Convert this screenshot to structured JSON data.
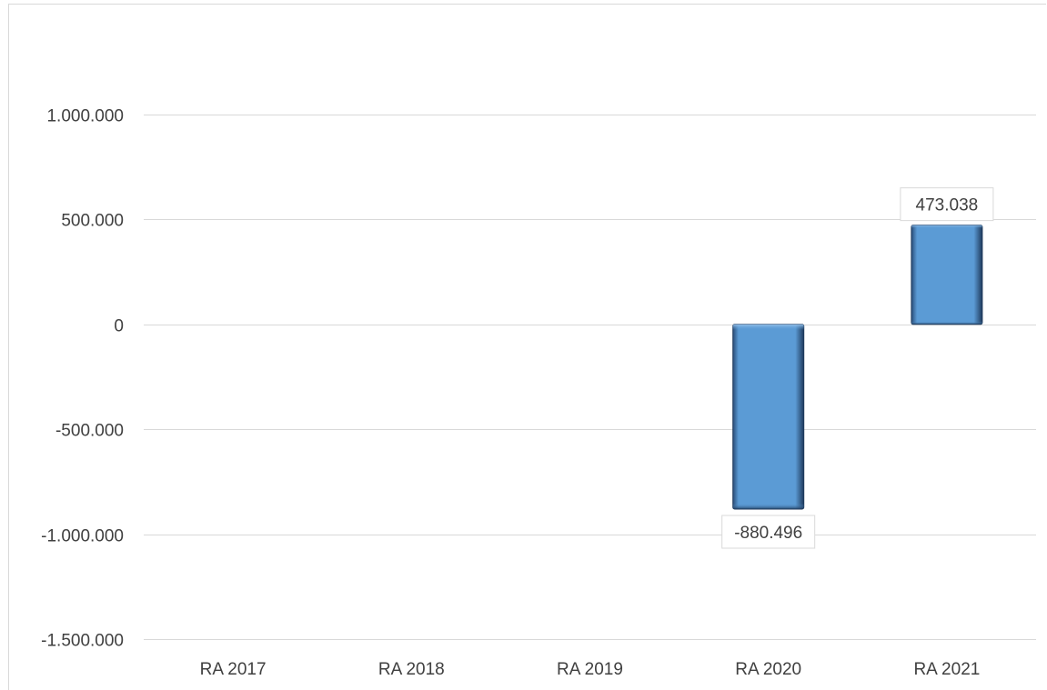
{
  "chart_data": {
    "type": "bar",
    "categories": [
      "RA 2017",
      "RA 2018",
      "RA 2019",
      "RA 2020",
      "RA 2021"
    ],
    "values": [
      0,
      0,
      0,
      -880496,
      473038
    ],
    "data_labels": [
      "",
      "",
      "",
      "-880.496",
      "473.038"
    ],
    "ylim": [
      -1500000,
      1500000
    ],
    "yticks": [
      1000000,
      500000,
      0,
      -500000,
      -1000000,
      -1500000
    ],
    "ytick_labels": [
      "1.000.000",
      "500.000",
      "0",
      "-500.000",
      "-1.000.000",
      "-1.500.000"
    ],
    "title": "",
    "xlabel": "",
    "ylabel": "",
    "grid": true,
    "legend": "none",
    "colors": {
      "bar_fill": "#5b9bd5",
      "bar_edge": "#1f3a5c",
      "gridline": "#d9d9d9",
      "text": "#404040"
    }
  }
}
